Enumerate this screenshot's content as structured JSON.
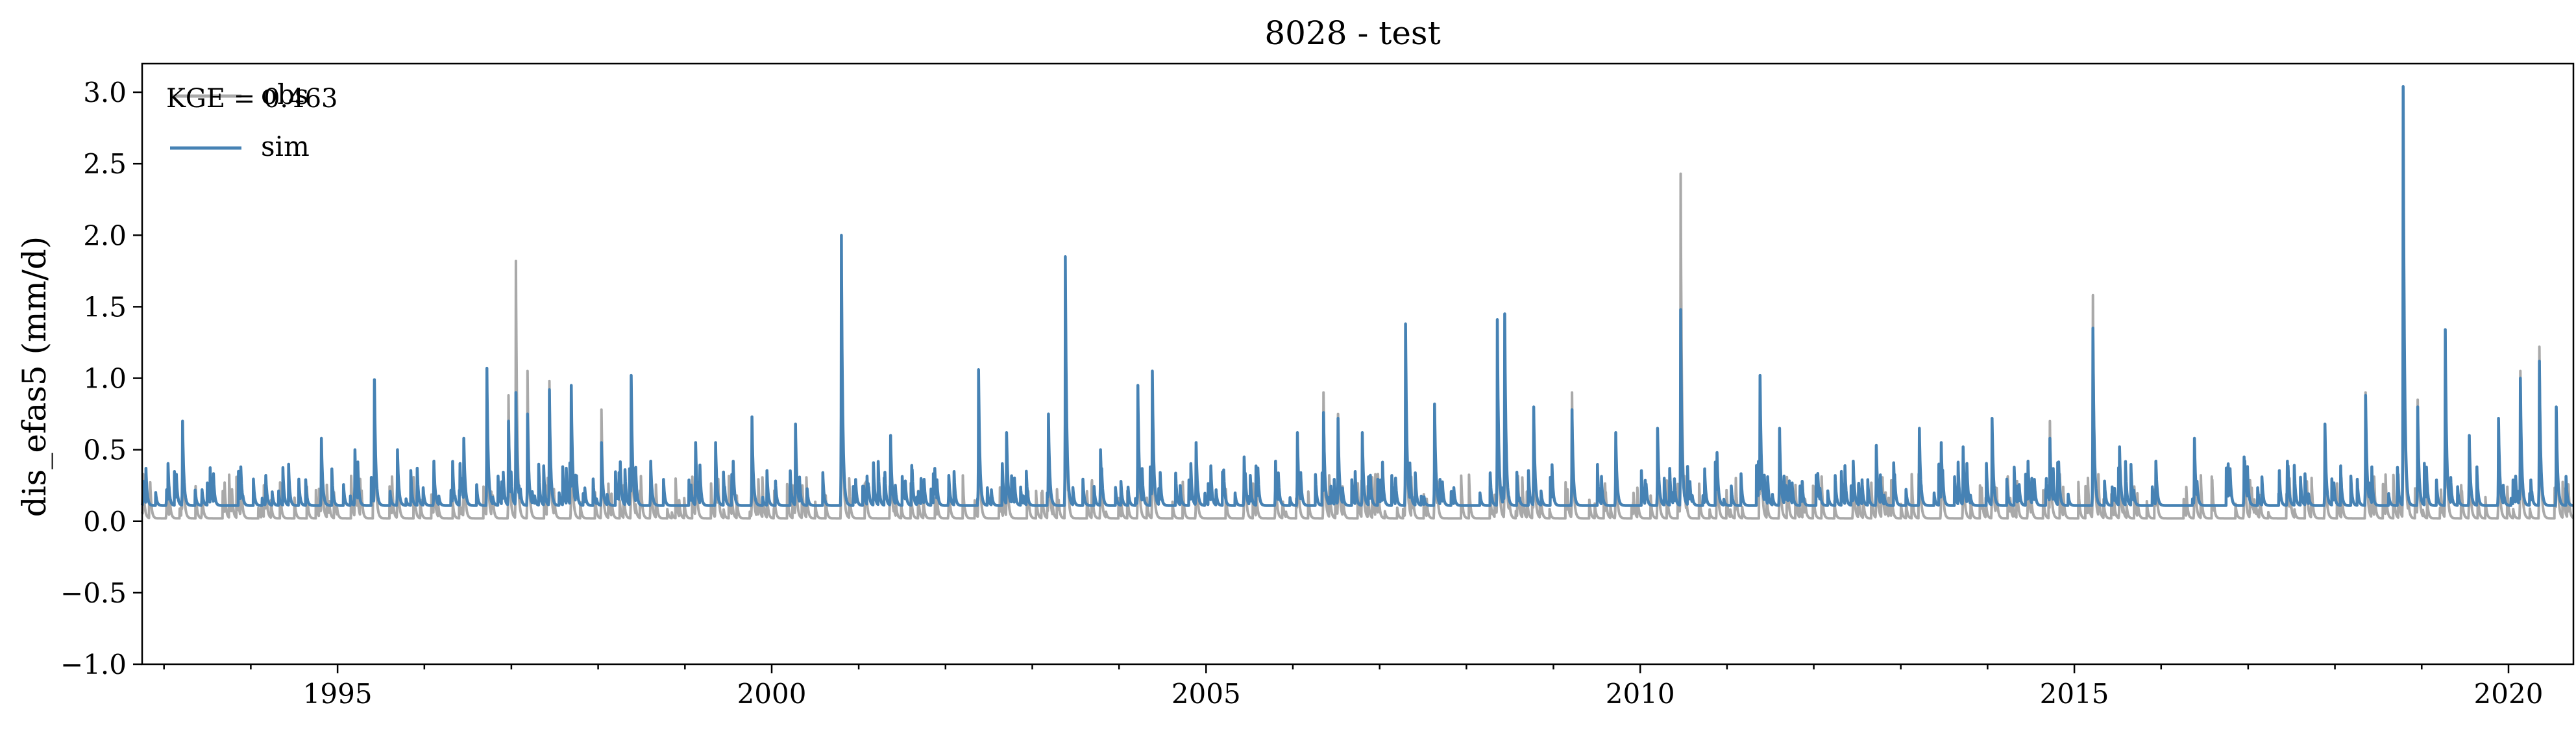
{
  "chart_data": {
    "type": "line",
    "title": "8028 - test",
    "xlabel": "",
    "ylabel": "dis_efas5 (mm/d)",
    "xlim": [
      "1992-10-01",
      "2020-09-30"
    ],
    "ylim": [
      -1.0,
      3.2
    ],
    "y_ticks": [
      -1.0,
      -0.5,
      0.0,
      0.5,
      1.0,
      1.5,
      2.0,
      2.5,
      3.0
    ],
    "y_tick_labels": [
      "−1.0",
      "−0.5",
      "0.0",
      "0.5",
      "1.0",
      "1.5",
      "2.0",
      "2.5",
      "3.0"
    ],
    "x_major_ticks": [
      1995,
      2000,
      2005,
      2010,
      2015,
      2020
    ],
    "x_major_tick_labels": [
      "1995",
      "2000",
      "2005",
      "2010",
      "2015",
      "2020"
    ],
    "x_minor_ticks": "yearly",
    "grid": false,
    "legend": {
      "location": "top-left",
      "entries": [
        "obs",
        "sim"
      ]
    },
    "annotation": "KGE = 0.463",
    "series": [
      {
        "name": "obs",
        "color": "#a9a9a9",
        "peaks": [
          [
            "1992-10-05",
            0.33
          ],
          [
            "1993-01-12",
            0.18
          ],
          [
            "1993-03-20",
            0.7
          ],
          [
            "1993-06-10",
            0.2
          ],
          [
            "1993-11-20",
            0.36
          ],
          [
            "1994-03-05",
            0.3
          ],
          [
            "1994-10-25",
            0.55
          ],
          [
            "1995-03-15",
            0.48
          ],
          [
            "1995-06-05",
            0.95
          ],
          [
            "1995-09-10",
            0.45
          ],
          [
            "1996-02-10",
            0.4
          ],
          [
            "1996-06-15",
            0.55
          ],
          [
            "1996-09-20",
            0.85
          ],
          [
            "1996-12-20",
            0.88
          ],
          [
            "1997-01-20",
            1.82
          ],
          [
            "1997-03-10",
            1.05
          ],
          [
            "1997-06-10",
            0.98
          ],
          [
            "1997-09-10",
            0.8
          ],
          [
            "1998-01-15",
            0.78
          ],
          [
            "1998-05-20",
            1.0
          ],
          [
            "1998-08-10",
            0.4
          ],
          [
            "1999-02-15",
            0.55
          ],
          [
            "1999-05-10",
            0.5
          ],
          [
            "1999-10-10",
            0.7
          ],
          [
            "2000-04-10",
            0.5
          ],
          [
            "2000-10-20",
            1.8
          ],
          [
            "2001-05-15",
            0.55
          ],
          [
            "2002-01-15",
            0.28
          ],
          [
            "2002-05-20",
            1.0
          ],
          [
            "2002-09-15",
            0.6
          ],
          [
            "2003-03-10",
            0.7
          ],
          [
            "2003-05-20",
            1.75
          ],
          [
            "2003-10-15",
            0.48
          ],
          [
            "2004-03-20",
            0.82
          ],
          [
            "2004-05-20",
            1.0
          ],
          [
            "2004-11-20",
            0.5
          ],
          [
            "2005-06-10",
            0.45
          ],
          [
            "2005-10-20",
            0.38
          ],
          [
            "2006-01-20",
            0.55
          ],
          [
            "2006-05-10",
            0.9
          ],
          [
            "2006-07-10",
            0.75
          ],
          [
            "2006-10-20",
            0.6
          ],
          [
            "2007-04-20",
            1.3
          ],
          [
            "2007-08-20",
            0.7
          ],
          [
            "2008-05-10",
            1.35
          ],
          [
            "2008-06-10",
            1.4
          ],
          [
            "2008-10-10",
            0.75
          ],
          [
            "2009-03-20",
            0.9
          ],
          [
            "2009-09-20",
            0.55
          ],
          [
            "2010-03-15",
            0.6
          ],
          [
            "2010-06-20",
            2.43
          ],
          [
            "2010-11-20",
            0.45
          ],
          [
            "2011-05-20",
            1.0
          ],
          [
            "2011-08-10",
            0.55
          ],
          [
            "2012-06-15",
            0.4
          ],
          [
            "2012-09-20",
            0.5
          ],
          [
            "2013-03-20",
            0.55
          ],
          [
            "2013-06-20",
            0.55
          ],
          [
            "2013-09-20",
            0.5
          ],
          [
            "2014-01-20",
            0.7
          ],
          [
            "2014-06-20",
            0.4
          ],
          [
            "2014-09-20",
            0.7
          ],
          [
            "2015-03-20",
            1.58
          ],
          [
            "2015-07-10",
            0.48
          ],
          [
            "2015-12-10",
            0.38
          ],
          [
            "2016-05-20",
            0.52
          ],
          [
            "2016-12-15",
            0.42
          ],
          [
            "2017-06-15",
            0.38
          ],
          [
            "2017-11-20",
            0.6
          ],
          [
            "2018-05-10",
            0.9
          ],
          [
            "2018-10-15",
            2.7
          ],
          [
            "2018-12-15",
            0.85
          ],
          [
            "2019-04-10",
            1.33
          ],
          [
            "2019-07-20",
            0.55
          ],
          [
            "2019-11-20",
            0.62
          ],
          [
            "2020-02-20",
            1.05
          ],
          [
            "2020-05-10",
            1.22
          ],
          [
            "2020-07-20",
            0.75
          ]
        ],
        "baseline": 0.02
      },
      {
        "name": "sim",
        "color": "#4682b4",
        "peaks": [
          [
            "1992-10-05",
            0.28
          ],
          [
            "1993-01-12",
            0.22
          ],
          [
            "1993-03-20",
            0.7
          ],
          [
            "1993-06-10",
            0.22
          ],
          [
            "1993-11-20",
            0.38
          ],
          [
            "1994-03-05",
            0.32
          ],
          [
            "1994-10-25",
            0.58
          ],
          [
            "1995-03-15",
            0.5
          ],
          [
            "1995-06-05",
            0.99
          ],
          [
            "1995-09-10",
            0.5
          ],
          [
            "1996-02-10",
            0.42
          ],
          [
            "1996-06-15",
            0.58
          ],
          [
            "1996-09-20",
            1.07
          ],
          [
            "1996-12-20",
            0.7
          ],
          [
            "1997-01-20",
            0.9
          ],
          [
            "1997-03-10",
            0.75
          ],
          [
            "1997-06-10",
            0.92
          ],
          [
            "1997-09-10",
            0.95
          ],
          [
            "1998-01-15",
            0.55
          ],
          [
            "1998-05-20",
            1.02
          ],
          [
            "1998-08-10",
            0.42
          ],
          [
            "1999-02-15",
            0.55
          ],
          [
            "1999-05-10",
            0.55
          ],
          [
            "1999-10-10",
            0.73
          ],
          [
            "2000-04-10",
            0.68
          ],
          [
            "2000-10-20",
            2.0
          ],
          [
            "2001-05-15",
            0.6
          ],
          [
            "2002-01-15",
            0.32
          ],
          [
            "2002-05-20",
            1.06
          ],
          [
            "2002-09-15",
            0.62
          ],
          [
            "2003-03-10",
            0.75
          ],
          [
            "2003-05-20",
            1.85
          ],
          [
            "2003-10-15",
            0.5
          ],
          [
            "2004-03-20",
            0.95
          ],
          [
            "2004-05-20",
            1.05
          ],
          [
            "2004-11-20",
            0.55
          ],
          [
            "2005-06-10",
            0.45
          ],
          [
            "2005-10-20",
            0.42
          ],
          [
            "2006-01-20",
            0.62
          ],
          [
            "2006-05-10",
            0.76
          ],
          [
            "2006-07-10",
            0.72
          ],
          [
            "2006-10-20",
            0.62
          ],
          [
            "2007-04-20",
            1.38
          ],
          [
            "2007-08-20",
            0.82
          ],
          [
            "2008-05-10",
            1.41
          ],
          [
            "2008-06-10",
            1.45
          ],
          [
            "2008-10-10",
            0.8
          ],
          [
            "2009-03-20",
            0.78
          ],
          [
            "2009-09-20",
            0.62
          ],
          [
            "2010-03-15",
            0.65
          ],
          [
            "2010-06-20",
            1.48
          ],
          [
            "2010-11-20",
            0.48
          ],
          [
            "2011-05-20",
            1.02
          ],
          [
            "2011-08-10",
            0.65
          ],
          [
            "2012-06-15",
            0.42
          ],
          [
            "2012-09-20",
            0.53
          ],
          [
            "2013-03-20",
            0.65
          ],
          [
            "2013-06-20",
            0.55
          ],
          [
            "2013-09-20",
            0.52
          ],
          [
            "2014-01-20",
            0.72
          ],
          [
            "2014-06-20",
            0.42
          ],
          [
            "2014-09-20",
            0.58
          ],
          [
            "2015-03-20",
            1.35
          ],
          [
            "2015-07-10",
            0.52
          ],
          [
            "2015-12-10",
            0.42
          ],
          [
            "2016-05-20",
            0.58
          ],
          [
            "2016-12-15",
            0.45
          ],
          [
            "2017-06-15",
            0.42
          ],
          [
            "2017-11-20",
            0.68
          ],
          [
            "2018-05-10",
            0.88
          ],
          [
            "2018-10-15",
            3.04
          ],
          [
            "2018-12-15",
            0.8
          ],
          [
            "2019-04-10",
            1.34
          ],
          [
            "2019-07-20",
            0.6
          ],
          [
            "2019-11-20",
            0.72
          ],
          [
            "2020-02-20",
            1.0
          ],
          [
            "2020-05-10",
            1.12
          ],
          [
            "2020-07-20",
            0.8
          ]
        ],
        "baseline": 0.11
      }
    ]
  }
}
